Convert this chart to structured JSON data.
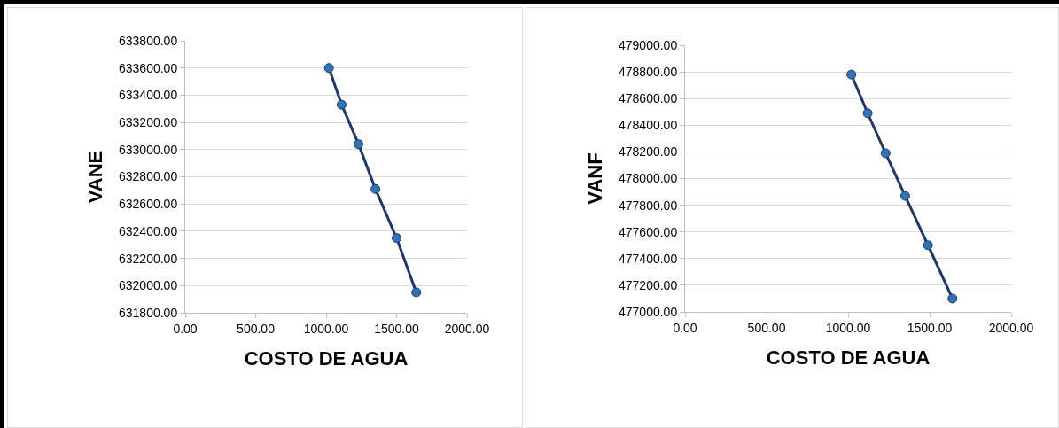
{
  "chart_data": [
    {
      "type": "line",
      "xlabel": "COSTO DE AGUA",
      "ylabel": "VANE",
      "x": [
        1020,
        1110,
        1230,
        1350,
        1500,
        1640
      ],
      "series": [
        {
          "color": "#1f3864",
          "values": [
            633600,
            633330,
            633040,
            632710,
            632350,
            631950
          ]
        }
      ],
      "xlim": [
        0,
        2000
      ],
      "xticks": [
        {
          "value": 0,
          "label": "0.00"
        },
        {
          "value": 500,
          "label": "500.00"
        },
        {
          "value": 1000,
          "label": "1000.00"
        },
        {
          "value": 1500,
          "label": "1500.00"
        },
        {
          "value": 2000,
          "label": "2000.00"
        }
      ],
      "ylim": [
        631800,
        633800
      ],
      "yticks": [
        {
          "value": 631800,
          "label": "631800.00"
        },
        {
          "value": 632000,
          "label": "632000.00"
        },
        {
          "value": 632200,
          "label": "632200.00"
        },
        {
          "value": 632400,
          "label": "632400.00"
        },
        {
          "value": 632600,
          "label": "632600.00"
        },
        {
          "value": 632800,
          "label": "632800.00"
        },
        {
          "value": 633000,
          "label": "633000.00"
        },
        {
          "value": 633200,
          "label": "633200.00"
        },
        {
          "value": 633400,
          "label": "633400.00"
        },
        {
          "value": 633600,
          "label": "633600.00"
        },
        {
          "value": 633800,
          "label": "633800.00"
        }
      ],
      "grid": "y",
      "marker": "circle",
      "line_style": "solid"
    },
    {
      "type": "line",
      "xlabel": "COSTO DE AGUA",
      "ylabel": "VANF",
      "x": [
        1020,
        1120,
        1230,
        1350,
        1490,
        1640
      ],
      "series": [
        {
          "color": "#1f3864",
          "values": [
            478780,
            478490,
            478190,
            477870,
            477500,
            477100
          ]
        }
      ],
      "xlim": [
        0,
        2000
      ],
      "xticks": [
        {
          "value": 0,
          "label": "0.00"
        },
        {
          "value": 500,
          "label": "500.00"
        },
        {
          "value": 1000,
          "label": "1000.00"
        },
        {
          "value": 1500,
          "label": "1500.00"
        },
        {
          "value": 2000,
          "label": "2000.00"
        }
      ],
      "ylim": [
        477000,
        479000
      ],
      "yticks": [
        {
          "value": 477000,
          "label": "477000.00"
        },
        {
          "value": 477200,
          "label": "477200.00"
        },
        {
          "value": 477400,
          "label": "477400.00"
        },
        {
          "value": 477600,
          "label": "477600.00"
        },
        {
          "value": 477800,
          "label": "477800.00"
        },
        {
          "value": 478000,
          "label": "478000.00"
        },
        {
          "value": 478200,
          "label": "478200.00"
        },
        {
          "value": 478400,
          "label": "478400.00"
        },
        {
          "value": 478600,
          "label": "478600.00"
        },
        {
          "value": 478800,
          "label": "478800.00"
        },
        {
          "value": 479000,
          "label": "479000.00"
        }
      ],
      "grid": "y",
      "marker": "circle",
      "line_style": "solid"
    }
  ]
}
